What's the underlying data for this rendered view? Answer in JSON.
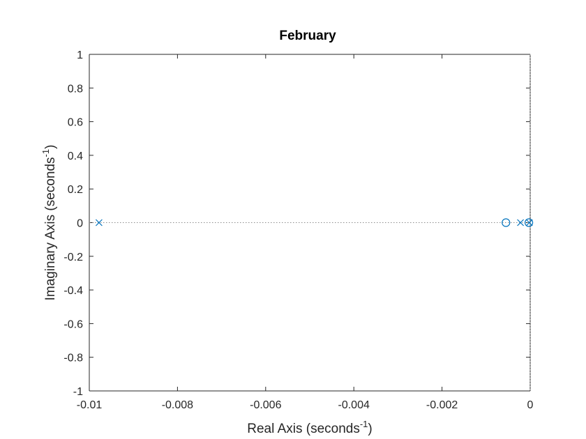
{
  "chart_data": {
    "type": "scatter",
    "title": "February",
    "xlabel": "Real Axis (seconds",
    "ylabel": "Imaginary Axis (seconds",
    "label_unit_exponent": "-1",
    "label_close": ")",
    "xlim": [
      -0.01,
      0
    ],
    "ylim": [
      -1,
      1
    ],
    "xticks": [
      -0.01,
      -0.008,
      -0.006,
      -0.004,
      -0.002,
      0
    ],
    "xtick_labels": [
      "-0.01",
      "-0.008",
      "-0.006",
      "-0.004",
      "-0.002",
      "0"
    ],
    "yticks": [
      -1,
      -0.8,
      -0.6,
      -0.4,
      -0.2,
      0,
      0.2,
      0.4,
      0.6,
      0.8,
      1
    ],
    "ytick_labels": [
      "-1",
      "-0.8",
      "-0.6",
      "-0.4",
      "-0.2",
      "0",
      "0.2",
      "0.4",
      "0.6",
      "0.8",
      "1"
    ],
    "grid": false,
    "reference_line": {
      "y": 0,
      "style": "dotted"
    },
    "series": [
      {
        "marker": "x",
        "color": "#0072BD",
        "points": [
          {
            "x": -0.00978,
            "y": 0
          },
          {
            "x": -0.00022,
            "y": 0
          },
          {
            "x": -2e-05,
            "y": 0
          }
        ]
      },
      {
        "marker": "o",
        "color": "#0072BD",
        "points": [
          {
            "x": -0.00055,
            "y": 0
          },
          {
            "x": -3e-05,
            "y": 0
          }
        ]
      }
    ]
  },
  "colors": {
    "axes": "#262626",
    "series": "#0072BD",
    "reference_line": "#8c8c8c"
  }
}
